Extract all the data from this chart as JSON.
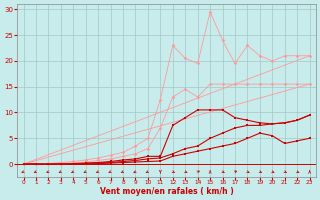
{
  "x": [
    0,
    1,
    2,
    3,
    4,
    5,
    6,
    7,
    8,
    9,
    10,
    11,
    12,
    13,
    14,
    15,
    16,
    17,
    18,
    19,
    20,
    21,
    22,
    23
  ],
  "background_color": "#c8ecec",
  "grid_color": "#a0c8c8",
  "xlabel": "Vent moyen/en rafales ( km/h )",
  "ylim": [
    0,
    31
  ],
  "xlim": [
    -0.5,
    23.5
  ],
  "yticks": [
    0,
    5,
    10,
    15,
    20,
    25,
    30
  ],
  "xticks": [
    0,
    1,
    2,
    3,
    4,
    5,
    6,
    7,
    8,
    9,
    10,
    11,
    12,
    13,
    14,
    15,
    16,
    17,
    18,
    19,
    20,
    21,
    22,
    23
  ],
  "light_pink": "#ff9999",
  "dark_red": "#cc0000",
  "line_spiky_y": [
    0.0,
    0.0,
    0.1,
    0.3,
    0.5,
    0.8,
    1.2,
    1.7,
    2.3,
    3.5,
    5.0,
    12.5,
    23.0,
    20.5,
    19.5,
    29.5,
    24.0,
    19.5,
    23.0,
    21.0,
    20.0,
    21.0,
    21.0,
    21.0
  ],
  "line_lower_pink_y": [
    0.0,
    0.0,
    0.0,
    0.1,
    0.2,
    0.4,
    0.7,
    1.0,
    1.5,
    2.0,
    3.0,
    7.0,
    13.0,
    14.5,
    13.0,
    15.5,
    15.5,
    15.5,
    15.5,
    15.5,
    15.5,
    15.5,
    15.5,
    15.5
  ],
  "line_trend1_end": 21.0,
  "line_trend2_end": 15.5,
  "line_bell_y": [
    0.0,
    0.0,
    0.0,
    0.0,
    0.1,
    0.2,
    0.3,
    0.5,
    0.8,
    1.0,
    1.5,
    1.5,
    7.5,
    9.0,
    10.5,
    10.5,
    10.5,
    9.0,
    8.5,
    8.0,
    7.8,
    8.0,
    8.5,
    9.5
  ],
  "line_mid_y": [
    0.0,
    0.0,
    0.0,
    0.0,
    0.0,
    0.1,
    0.2,
    0.3,
    0.5,
    0.7,
    1.0,
    1.2,
    2.0,
    3.0,
    3.5,
    5.0,
    6.0,
    7.0,
    7.5,
    7.5,
    7.8,
    8.0,
    8.5,
    9.5
  ],
  "line_low_y": [
    0.0,
    0.0,
    0.0,
    0.0,
    0.0,
    0.0,
    0.1,
    0.2,
    0.3,
    0.4,
    0.5,
    0.6,
    1.5,
    2.0,
    2.5,
    3.0,
    3.5,
    4.0,
    5.0,
    6.0,
    5.5,
    4.0,
    4.5,
    5.0
  ],
  "arrow_angles": [
    225,
    225,
    225,
    225,
    225,
    225,
    225,
    225,
    225,
    225,
    225,
    270,
    315,
    315,
    45,
    90,
    315,
    45,
    315,
    315,
    315,
    315,
    315,
    90
  ]
}
